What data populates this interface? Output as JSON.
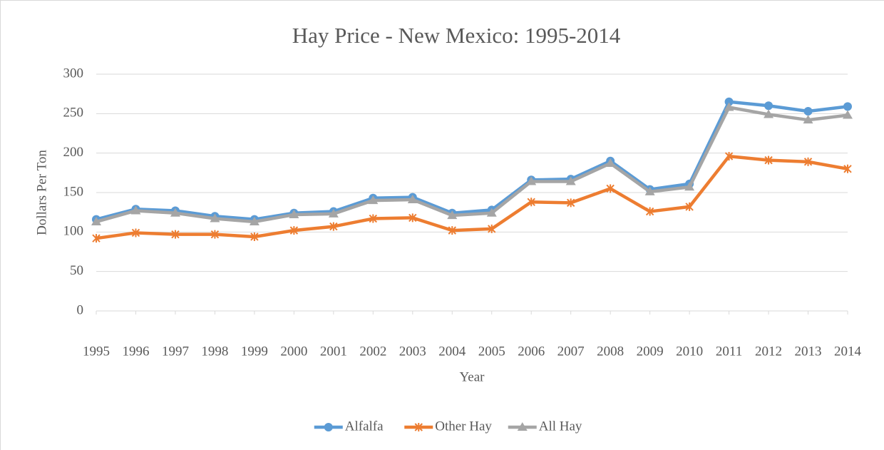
{
  "chart_data": {
    "type": "line",
    "title": "Hay Price - New Mexico: 1995-2014",
    "x_label": "Year",
    "y_label": "Dollars Per Ton",
    "categories": [
      "1995",
      "1996",
      "1997",
      "1998",
      "1999",
      "2000",
      "2001",
      "2002",
      "2003",
      "2004",
      "2005",
      "2006",
      "2007",
      "2008",
      "2009",
      "2010",
      "2011",
      "2012",
      "2013",
      "2014"
    ],
    "series": [
      {
        "name": "Alfalfa",
        "color": "#5b9bd5",
        "marker": "circle",
        "values": [
          116,
          129,
          127,
          120,
          116,
          124,
          126,
          143,
          144,
          124,
          128,
          166,
          167,
          190,
          154,
          161,
          265,
          260,
          253,
          259
        ]
      },
      {
        "name": "Other Hay",
        "color": "#ed7d31",
        "marker": "asterisk",
        "values": [
          92,
          99,
          97,
          97,
          94,
          102,
          107,
          117,
          118,
          102,
          104,
          138,
          137,
          155,
          126,
          132,
          196,
          191,
          189,
          180
        ]
      },
      {
        "name": "All Hay",
        "color": "#a5a5a5",
        "marker": "triangle",
        "values": [
          113,
          127,
          124,
          117,
          113,
          122,
          123,
          140,
          141,
          121,
          124,
          164,
          164,
          187,
          151,
          157,
          258,
          249,
          242,
          248
        ]
      }
    ],
    "ylim": [
      0,
      300
    ],
    "yticks": [
      0,
      50,
      100,
      150,
      200,
      250,
      300
    ],
    "grid": true,
    "legend": "bottom"
  }
}
